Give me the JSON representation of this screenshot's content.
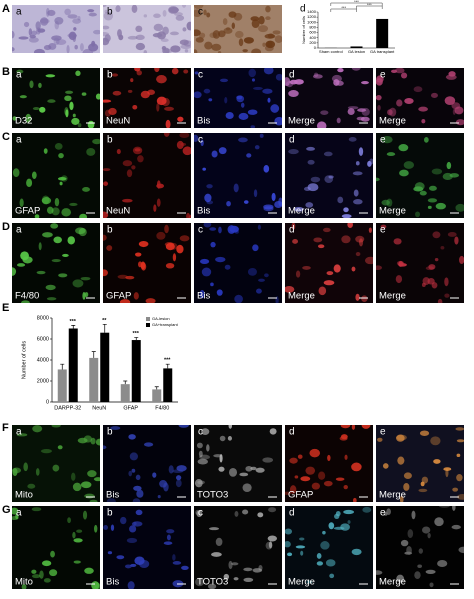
{
  "rows": [
    {
      "label": "A",
      "tiles": [
        {
          "letter": "a"
        },
        {
          "letter": "b"
        },
        {
          "letter": "c"
        }
      ]
    },
    {
      "label": "B",
      "tiles": [
        {
          "letter": "a",
          "caption": "D32"
        },
        {
          "letter": "b",
          "caption": "NeuN"
        },
        {
          "letter": "c",
          "caption": "Bis"
        },
        {
          "letter": "d",
          "caption": "Merge"
        },
        {
          "letter": "e",
          "caption": "Merge"
        }
      ]
    },
    {
      "label": "C",
      "tiles": [
        {
          "letter": "a",
          "caption": "GFAP"
        },
        {
          "letter": "b",
          "caption": "NeuN"
        },
        {
          "letter": "c",
          "caption": "Bis"
        },
        {
          "letter": "d",
          "caption": "Merge"
        },
        {
          "letter": "e",
          "caption": "Merge"
        }
      ]
    },
    {
      "label": "D",
      "tiles": [
        {
          "letter": "a",
          "caption": "F4/80"
        },
        {
          "letter": "b",
          "caption": "GFAP"
        },
        {
          "letter": "c",
          "caption": "Bis"
        },
        {
          "letter": "d",
          "caption": "Merge"
        },
        {
          "letter": "e",
          "caption": "Merge"
        }
      ]
    },
    {
      "label": "F",
      "tiles": [
        {
          "letter": "a",
          "caption": "Mito"
        },
        {
          "letter": "b",
          "caption": "Bis"
        },
        {
          "letter": "c",
          "caption": "TOTO3"
        },
        {
          "letter": "d",
          "caption": "GFAP"
        },
        {
          "letter": "e",
          "caption": "Merge"
        }
      ]
    },
    {
      "label": "G",
      "tiles": [
        {
          "letter": "a",
          "caption": "Mito"
        },
        {
          "letter": "b",
          "caption": "Bis"
        },
        {
          "letter": "c",
          "caption": "TOTO3"
        },
        {
          "letter": "d",
          "caption": "Merge"
        },
        {
          "letter": "e",
          "caption": "Merge"
        }
      ]
    }
  ],
  "chart_data": [
    {
      "type": "bar",
      "panel_letter": "d",
      "y_label": "Number of cells",
      "categories": [
        "Sham control",
        "GA lesion",
        "GA transplant"
      ],
      "values": [
        5,
        60,
        1130
      ],
      "color": "#000000",
      "ylim": [
        0,
        1400
      ],
      "yticks": [
        0,
        200,
        400,
        600,
        800,
        1000,
        1200,
        1400
      ],
      "annotations": [
        "***",
        "***",
        "***"
      ]
    },
    {
      "type": "grouped_bar",
      "panel_label": "E",
      "y_label": "Number of cells",
      "categories": [
        "DARPP-32",
        "NeuN",
        "GFAP",
        "F4/80"
      ],
      "series": [
        {
          "name": "GA-lesion",
          "color": "#8c8c8c",
          "values": [
            3100,
            4200,
            1700,
            1200
          ],
          "errors": [
            500,
            600,
            300,
            250
          ]
        },
        {
          "name": "GA+transplant",
          "color": "#000000",
          "values": [
            7000,
            6600,
            5900,
            3200
          ],
          "errors": [
            300,
            800,
            250,
            400
          ]
        }
      ],
      "ylim": [
        0,
        8000
      ],
      "yticks": [
        0,
        2000,
        4000,
        6000,
        8000
      ],
      "annotations": [
        "***",
        "**",
        "***",
        "***"
      ]
    }
  ]
}
